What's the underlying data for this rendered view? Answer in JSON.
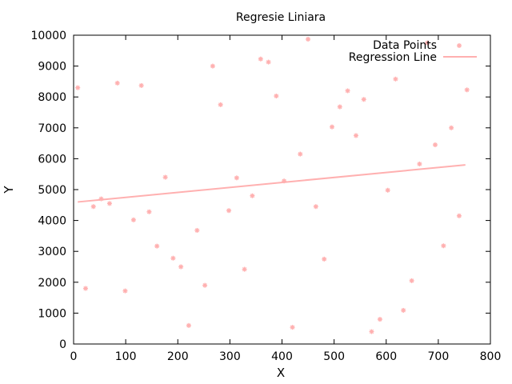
{
  "chart_data": {
    "type": "scatter",
    "title": "Regresie Liniara",
    "xlabel": "X",
    "ylabel": "Y",
    "xlim": [
      0,
      800
    ],
    "ylim": [
      0,
      10000
    ],
    "xticks": [
      "0",
      "100",
      "200",
      "300",
      "400",
      "500",
      "600",
      "700",
      "800"
    ],
    "yticks": [
      "0",
      "1000",
      "2000",
      "3000",
      "4000",
      "5000",
      "6000",
      "7000",
      "8000",
      "9000",
      "10000"
    ],
    "legend_position": "top-right",
    "grid": false,
    "colors": {
      "points": "#ffb0b0",
      "line": "#ffb0b0",
      "axes": "#000000"
    },
    "series": [
      {
        "name": "Data Points",
        "kind": "scatter",
        "points": [
          [
            8,
            8300
          ],
          [
            23,
            1800
          ],
          [
            38,
            4450
          ],
          [
            53,
            4700
          ],
          [
            69,
            4550
          ],
          [
            84,
            8450
          ],
          [
            99,
            1720
          ],
          [
            115,
            4020
          ],
          [
            130,
            8370
          ],
          [
            145,
            4280
          ],
          [
            160,
            3170
          ],
          [
            176,
            5400
          ],
          [
            191,
            2780
          ],
          [
            206,
            2500
          ],
          [
            221,
            600
          ],
          [
            237,
            3680
          ],
          [
            252,
            1900
          ],
          [
            267,
            9000
          ],
          [
            282,
            7750
          ],
          [
            298,
            4320
          ],
          [
            313,
            5380
          ],
          [
            328,
            2420
          ],
          [
            343,
            4800
          ],
          [
            359,
            9230
          ],
          [
            374,
            9130
          ],
          [
            389,
            8030
          ],
          [
            404,
            5280
          ],
          [
            420,
            540
          ],
          [
            435,
            6150
          ],
          [
            450,
            9870
          ],
          [
            465,
            4450
          ],
          [
            481,
            2750
          ],
          [
            496,
            7030
          ],
          [
            511,
            7680
          ],
          [
            526,
            8200
          ],
          [
            542,
            6750
          ],
          [
            557,
            7920
          ],
          [
            572,
            400
          ],
          [
            588,
            800
          ],
          [
            603,
            4980
          ],
          [
            618,
            8580
          ],
          [
            633,
            1090
          ],
          [
            649,
            2050
          ],
          [
            664,
            5830
          ],
          [
            679,
            9750
          ],
          [
            694,
            6450
          ],
          [
            710,
            3180
          ],
          [
            725,
            7000
          ],
          [
            740,
            4150
          ],
          [
            755,
            8230
          ]
        ]
      },
      {
        "name": "Regression Line",
        "kind": "line",
        "points": [
          [
            8,
            4600
          ],
          [
            752,
            5800
          ]
        ]
      }
    ]
  }
}
